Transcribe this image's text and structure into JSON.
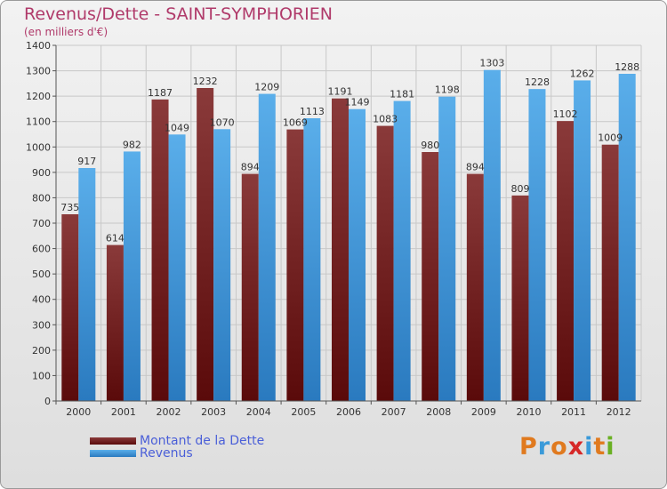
{
  "title": "Revenus/Dette - SAINT-SYMPHORIEN",
  "subtitle": "(en milliers d'€)",
  "logo": {
    "letters": [
      "P",
      "r",
      "o",
      "x",
      "i",
      "t",
      "i"
    ],
    "colors": [
      "#e07a1f",
      "#3a9ad9",
      "#e07a1f",
      "#d62828",
      "#3a9ad9",
      "#e07a1f",
      "#6ab023"
    ]
  },
  "colors": {
    "series0_dark": "#5a0a0a",
    "series0_light": "#8a3a3a",
    "series1_dark": "#2a7abf",
    "series1_light": "#5aaeea",
    "grid": "#c8c8c8"
  },
  "chart_data": {
    "type": "bar",
    "title": "Revenus/Dette - SAINT-SYMPHORIEN",
    "ylim": [
      0,
      1400
    ],
    "yticks": [
      0,
      100,
      200,
      300,
      400,
      500,
      600,
      700,
      800,
      900,
      1000,
      1100,
      1200,
      1300,
      1400
    ],
    "grid": true,
    "legend": "bottom-left",
    "categories": [
      "2000",
      "2001",
      "2002",
      "2003",
      "2004",
      "2005",
      "2006",
      "2007",
      "2008",
      "2009",
      "2010",
      "2011",
      "2012"
    ],
    "series": [
      {
        "name": "Montant de la Dette",
        "values": [
          735,
          614,
          1187,
          1232,
          894,
          1069,
          1191,
          1083,
          980,
          894,
          809,
          1102,
          1009
        ]
      },
      {
        "name": "Revenus",
        "values": [
          917,
          982,
          1049,
          1070,
          1209,
          1113,
          1149,
          1181,
          1198,
          1303,
          1228,
          1262,
          1288
        ]
      }
    ]
  }
}
